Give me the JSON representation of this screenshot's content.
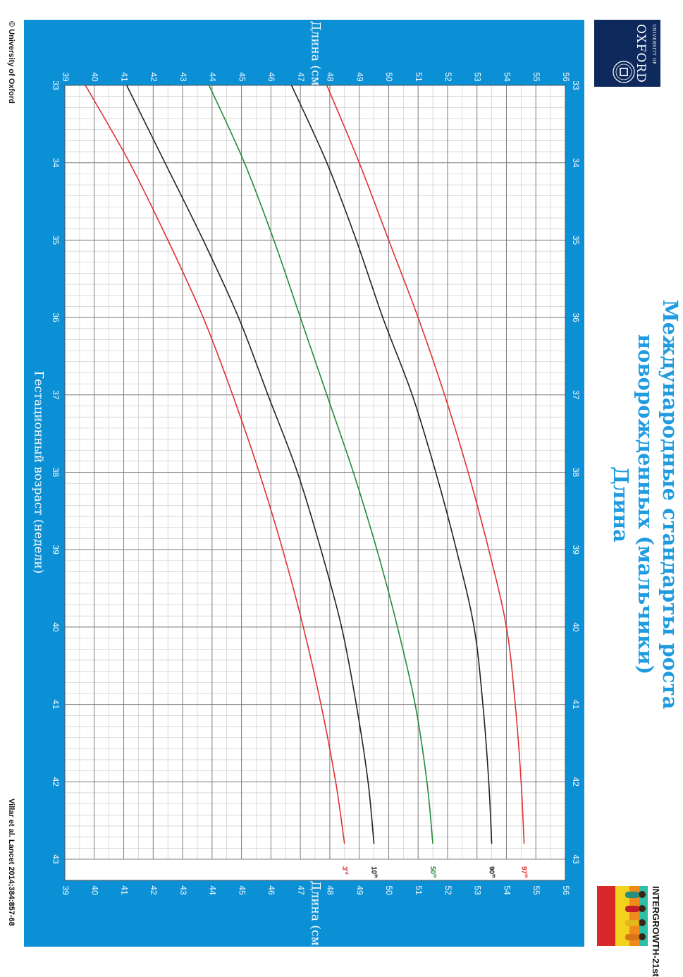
{
  "page_title": {
    "line1": "Международные стандарты роста",
    "line2": "новорожденных (мальчики)",
    "line3": "Длина"
  },
  "logos": {
    "oxford": {
      "line1": "UNIVERSITY OF",
      "line2": "OXFORD"
    },
    "intergrowth": {
      "text": "INTERGROWTH-21st"
    }
  },
  "footer": {
    "copyright": "© University of Oxford",
    "citation": "Villar et al. Lancet 2014;384:857-68"
  },
  "colors": {
    "panel": "#0b8fd5",
    "grid": "#9a9a9a",
    "red": "#e03030",
    "black": "#222222",
    "green": "#1f8a3a"
  },
  "chart_data": {
    "type": "line",
    "orientation": "rotated 90° clockwise (x axis runs top to bottom, y axis left to right)",
    "title": "",
    "xlabel": "Гестационный возраст (недели)",
    "ylabel_top": "Длина (см)",
    "ylabel_bottom": "Длина (см)",
    "xlim": [
      33,
      43
    ],
    "ylim": [
      39,
      56
    ],
    "x_ticks": [
      33,
      34,
      35,
      36,
      37,
      38,
      39,
      40,
      41,
      42,
      43
    ],
    "y_ticks": [
      39,
      40,
      41,
      42,
      43,
      44,
      45,
      46,
      47,
      48,
      49,
      50,
      51,
      52,
      53,
      54,
      55,
      56
    ],
    "grid": true,
    "series": [
      {
        "name": "3rd",
        "color": "red",
        "x": [
          33,
          34,
          35,
          36,
          37,
          38,
          39,
          40,
          41,
          42,
          42.8
        ],
        "values": [
          39.7,
          41.2,
          42.5,
          43.7,
          44.7,
          45.6,
          46.4,
          47.1,
          47.7,
          48.2,
          48.5
        ]
      },
      {
        "name": "10th",
        "color": "black",
        "x": [
          33,
          34,
          35,
          36,
          37,
          38,
          39,
          40,
          41,
          42,
          42.8
        ],
        "values": [
          41.1,
          42.4,
          43.7,
          44.9,
          45.9,
          46.9,
          47.7,
          48.4,
          48.9,
          49.3,
          49.5
        ]
      },
      {
        "name": "50th",
        "color": "green",
        "x": [
          33,
          34,
          35,
          36,
          37,
          38,
          39,
          40,
          41,
          42,
          42.8
        ],
        "values": [
          43.9,
          45.1,
          46.1,
          47.0,
          47.9,
          48.8,
          49.6,
          50.3,
          50.9,
          51.3,
          51.5
        ]
      },
      {
        "name": "90th",
        "color": "black",
        "x": [
          33,
          34,
          35,
          36,
          37,
          38,
          39,
          40,
          41,
          42,
          42.8
        ],
        "values": [
          46.7,
          47.9,
          48.9,
          49.8,
          50.8,
          51.6,
          52.3,
          52.9,
          53.2,
          53.4,
          53.5
        ]
      },
      {
        "name": "97th",
        "color": "red",
        "x": [
          33,
          34,
          35,
          36,
          37,
          38,
          39,
          40,
          41,
          42,
          42.8
        ],
        "values": [
          47.9,
          49.0,
          50.0,
          51.0,
          51.9,
          52.7,
          53.4,
          54.0,
          54.3,
          54.5,
          54.6
        ]
      }
    ],
    "end_labels": [
      {
        "base": "3",
        "sup": "rd"
      },
      {
        "base": "10",
        "sup": "th"
      },
      {
        "base": "50",
        "sup": "th"
      },
      {
        "base": "90",
        "sup": "th"
      },
      {
        "base": "97",
        "sup": "th"
      }
    ]
  }
}
